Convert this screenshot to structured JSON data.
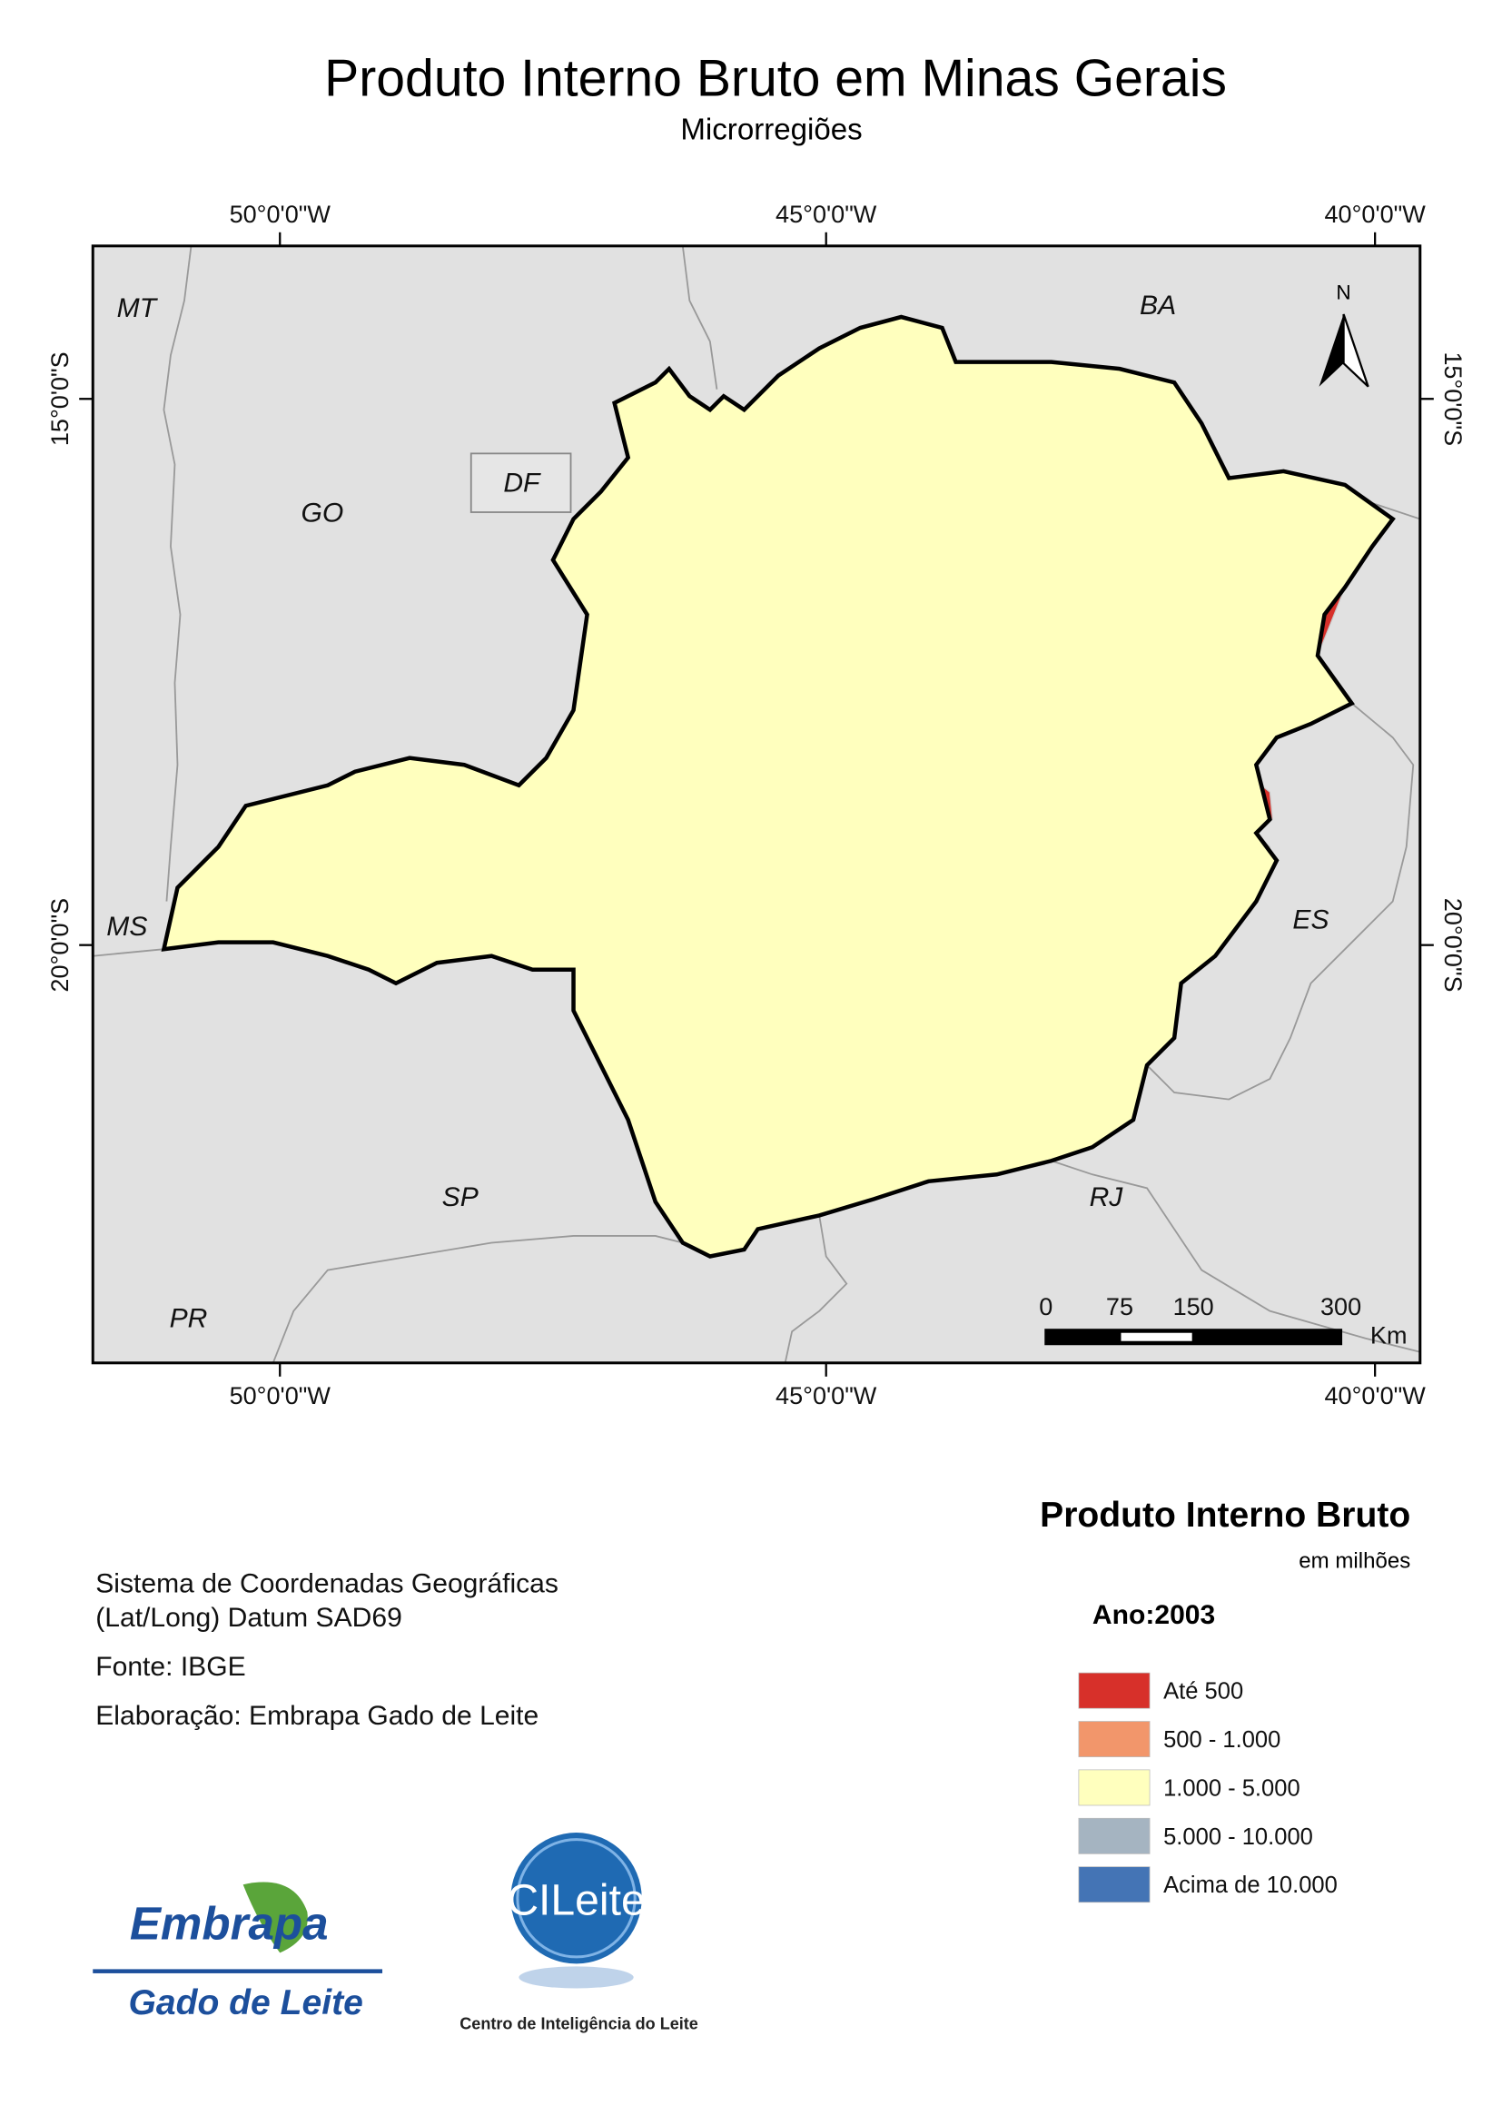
{
  "header": {
    "title": "Produto Interno Bruto em Minas Gerais",
    "subtitle": "Microrregiões"
  },
  "map": {
    "longitude_labels": [
      "50°0'0\"W",
      "45°0'0\"W",
      "40°0'0\"W"
    ],
    "latitude_labels": [
      "15°0'0\"S",
      "20°0'0\"S"
    ],
    "state_labels": [
      "MT",
      "BA",
      "GO",
      "DF",
      "MS",
      "ES",
      "SP",
      "RJ",
      "PR"
    ],
    "north": "N",
    "scale_bar": {
      "labels": [
        "0",
        "75",
        "150",
        "300"
      ],
      "unit": "Km"
    }
  },
  "legend": {
    "title": "Produto Interno Bruto",
    "subtitle": "em milhões",
    "year": "Ano:2003",
    "items": [
      {
        "label": "Até 500",
        "color": "#d7302a"
      },
      {
        "label": "500 - 1.000",
        "color": "#f2966b"
      },
      {
        "label": "1.000 - 5.000",
        "color": "#ffffbe"
      },
      {
        "label": "5.000 - 10.000",
        "color": "#a5b4c1"
      },
      {
        "label": "Acima de 10.000",
        "color": "#4474b5"
      }
    ]
  },
  "credits": [
    "Sistema de Coordenadas Geográficas",
    "(Lat/Long) Datum SAD69",
    "Fonte: IBGE",
    "Elaboração: Embrapa Gado de Leite"
  ],
  "logos": {
    "embrapa": "Embrapa",
    "embrapa_sub": "Gado de Leite",
    "cileite": "CILeite",
    "cileite_sub": "Centro de Inteligência do Leite"
  }
}
